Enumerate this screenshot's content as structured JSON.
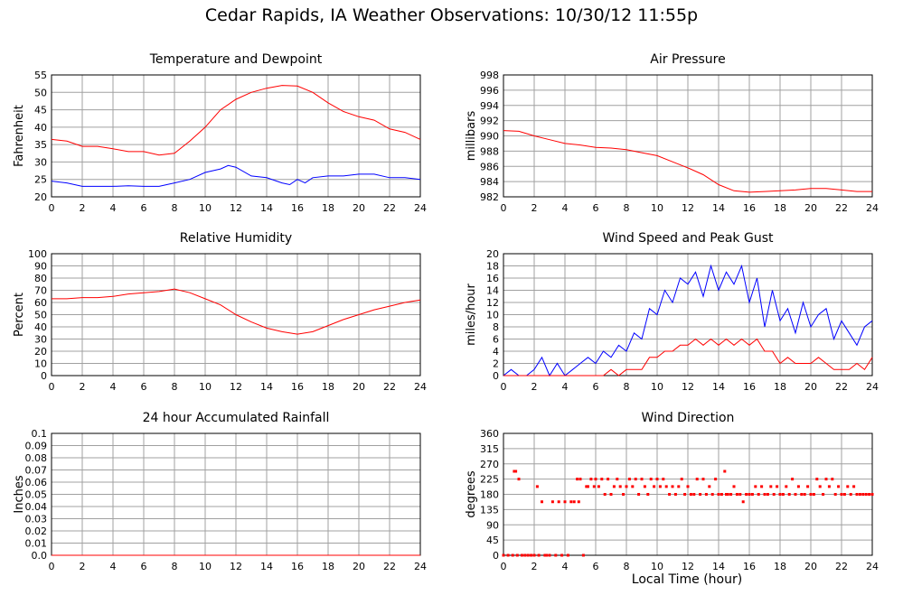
{
  "page": {
    "title": "Cedar Rapids, IA Weather Observations: 10/30/12 11:55p",
    "xlabel": "Local Time (hour)"
  },
  "colors": {
    "red": "#ff0000",
    "blue": "#0000ff",
    "grid": "#a0a0a0"
  },
  "chart_data": [
    {
      "type": "line",
      "title": "Temperature and Dewpoint",
      "ylabel": "Fahrenheit",
      "xlim": [
        0,
        24
      ],
      "ylim": [
        20,
        55
      ],
      "xticks": [
        "0",
        "2",
        "4",
        "6",
        "8",
        "10",
        "12",
        "14",
        "16",
        "18",
        "20",
        "22",
        "24"
      ],
      "yticks": [
        "20",
        "25",
        "30",
        "35",
        "40",
        "45",
        "50",
        "55"
      ],
      "grid": true,
      "series": [
        {
          "color": "#ff0000",
          "x": [
            0,
            1,
            2,
            3,
            4,
            5,
            6,
            7,
            8,
            9,
            10,
            11,
            12,
            13,
            14,
            15,
            16,
            17,
            18,
            19,
            20,
            21,
            22,
            23,
            24
          ],
          "values": [
            36.5,
            36,
            34.5,
            34.5,
            33.8,
            33,
            33,
            32,
            32.5,
            36,
            40,
            45,
            48,
            50,
            51.2,
            52,
            51.8,
            50,
            47,
            44.5,
            43,
            42,
            39.5,
            38.5,
            36.5
          ]
        },
        {
          "color": "#0000ff",
          "x": [
            0,
            1,
            2,
            3,
            4,
            5,
            6,
            7,
            8,
            9,
            10,
            11,
            11.5,
            12,
            13,
            14,
            15,
            15.5,
            16,
            16.5,
            17,
            18,
            19,
            20,
            21,
            22,
            23,
            24
          ],
          "values": [
            24.5,
            24,
            23,
            23,
            23,
            23.2,
            23,
            23,
            24,
            25,
            27,
            28,
            29,
            28.5,
            26,
            25.5,
            24,
            23.5,
            25,
            24,
            25.5,
            26,
            26,
            26.5,
            26.5,
            25.5,
            25.5,
            25
          ]
        }
      ]
    },
    {
      "type": "line",
      "title": "Air Pressure",
      "ylabel": "millibars",
      "xlim": [
        0,
        24
      ],
      "ylim": [
        982,
        998
      ],
      "xticks": [
        "0",
        "2",
        "4",
        "6",
        "8",
        "10",
        "12",
        "14",
        "16",
        "18",
        "20",
        "22",
        "24"
      ],
      "yticks": [
        "982",
        "984",
        "986",
        "988",
        "990",
        "992",
        "994",
        "996",
        "998"
      ],
      "grid": true,
      "series": [
        {
          "color": "#ff0000",
          "x": [
            0,
            1,
            2,
            3,
            4,
            5,
            6,
            7,
            8,
            9,
            10,
            11,
            12,
            13,
            14,
            15,
            16,
            17,
            18,
            19,
            20,
            21,
            22,
            23,
            24
          ],
          "values": [
            990.7,
            990.6,
            990,
            989.5,
            989,
            988.8,
            988.5,
            988.4,
            988.2,
            987.8,
            987.4,
            986.6,
            985.8,
            984.9,
            983.6,
            982.8,
            982.6,
            982.7,
            982.8,
            982.9,
            983.1,
            983.1,
            982.9,
            982.7,
            982.7
          ]
        }
      ]
    },
    {
      "type": "line",
      "title": "Relative Humidity",
      "ylabel": "Percent",
      "xlim": [
        0,
        24
      ],
      "ylim": [
        0,
        100
      ],
      "xticks": [
        "0",
        "2",
        "4",
        "6",
        "8",
        "10",
        "12",
        "14",
        "16",
        "18",
        "20",
        "22",
        "24"
      ],
      "yticks": [
        "0",
        "10",
        "20",
        "30",
        "40",
        "50",
        "60",
        "70",
        "80",
        "90",
        "100"
      ],
      "grid": true,
      "series": [
        {
          "color": "#ff0000",
          "x": [
            0,
            1,
            2,
            3,
            4,
            5,
            6,
            7,
            8,
            9,
            10,
            11,
            12,
            13,
            14,
            15,
            16,
            17,
            18,
            19,
            20,
            21,
            22,
            23,
            24
          ],
          "values": [
            63,
            63,
            64,
            64,
            65,
            67,
            68,
            69,
            71,
            68,
            63,
            58,
            50,
            44,
            39,
            36,
            34,
            36,
            41,
            46,
            50,
            54,
            57,
            60,
            62
          ]
        }
      ]
    },
    {
      "type": "line",
      "title": "Wind Speed and Peak Gust",
      "ylabel": "miles/hour",
      "xlim": [
        0,
        24
      ],
      "ylim": [
        0,
        20
      ],
      "xticks": [
        "0",
        "2",
        "4",
        "6",
        "8",
        "10",
        "12",
        "14",
        "16",
        "18",
        "20",
        "22",
        "24"
      ],
      "yticks": [
        "0",
        "2",
        "4",
        "6",
        "8",
        "10",
        "12",
        "14",
        "16",
        "18",
        "20"
      ],
      "grid": true,
      "series": [
        {
          "color": "#0000ff",
          "x": [
            0,
            0.5,
            1,
            1.5,
            2,
            2.5,
            3,
            3.5,
            4,
            4.5,
            5,
            5.5,
            6,
            6.5,
            7,
            7.5,
            8,
            8.5,
            9,
            9.5,
            10,
            10.5,
            11,
            11.5,
            12,
            12.5,
            13,
            13.5,
            14,
            14.5,
            15,
            15.5,
            16,
            16.5,
            17,
            17.5,
            18,
            18.5,
            19,
            19.5,
            20,
            20.5,
            21,
            21.5,
            22,
            22.5,
            23,
            23.5,
            24
          ],
          "values": [
            0,
            1,
            0,
            0,
            1,
            3,
            0,
            2,
            0,
            1,
            2,
            3,
            2,
            4,
            3,
            5,
            4,
            7,
            6,
            11,
            10,
            14,
            12,
            16,
            15,
            17,
            13,
            18,
            14,
            17,
            15,
            18,
            12,
            16,
            8,
            14,
            9,
            11,
            7,
            12,
            8,
            10,
            11,
            6,
            9,
            7,
            5,
            8,
            9
          ]
        },
        {
          "color": "#ff0000",
          "x": [
            0,
            6.5,
            7,
            7.5,
            8,
            8.5,
            9,
            9.5,
            10,
            10.5,
            11,
            11.5,
            12,
            12.5,
            13,
            13.5,
            14,
            14.5,
            15,
            15.5,
            16,
            16.5,
            17,
            17.5,
            18,
            18.5,
            19,
            19.5,
            20,
            20.5,
            21,
            21.5,
            22,
            22.5,
            23,
            23.5,
            24
          ],
          "values": [
            0,
            0,
            1,
            0,
            1,
            1,
            1,
            3,
            3,
            4,
            4,
            5,
            5,
            6,
            5,
            6,
            5,
            6,
            5,
            6,
            5,
            6,
            4,
            4,
            2,
            3,
            2,
            2,
            2,
            3,
            2,
            1,
            1,
            1,
            2,
            1,
            3
          ]
        }
      ]
    },
    {
      "type": "line",
      "title": "24 hour Accumulated Rainfall",
      "ylabel": "Inches",
      "xlim": [
        0,
        24
      ],
      "ylim": [
        0,
        0.1
      ],
      "xticks": [
        "0",
        "2",
        "4",
        "6",
        "8",
        "10",
        "12",
        "14",
        "16",
        "18",
        "20",
        "22",
        "24"
      ],
      "yticks": [
        "0.0",
        "0.01",
        "0.02",
        "0.03",
        "0.04",
        "0.05",
        "0.06",
        "0.07",
        "0.08",
        "0.09",
        "0.1"
      ],
      "grid": true,
      "series": [
        {
          "color": "#ff0000",
          "x": [
            0,
            24
          ],
          "values": [
            0,
            0
          ]
        }
      ]
    },
    {
      "type": "scatter",
      "title": "Wind Direction",
      "ylabel": "degrees",
      "xlabel": "Local Time (hour)",
      "xlim": [
        0,
        24
      ],
      "ylim": [
        0,
        360
      ],
      "xticks": [
        "0",
        "2",
        "4",
        "6",
        "8",
        "10",
        "12",
        "14",
        "16",
        "18",
        "20",
        "22",
        "24"
      ],
      "yticks": [
        "0",
        "45",
        "90",
        "135",
        "180",
        "225",
        "270",
        "315",
        "360"
      ],
      "grid": true,
      "series": [
        {
          "color": "#ff0000",
          "x": [
            0,
            0.3,
            0.6,
            0.7,
            0.8,
            0.9,
            1,
            1.2,
            1.4,
            1.6,
            1.8,
            2,
            2.2,
            2.3,
            2.5,
            2.7,
            2.8,
            3,
            3.2,
            3.4,
            3.6,
            3.8,
            4,
            4.2,
            4.4,
            4.6,
            4.8,
            4.9,
            5,
            5.2,
            5.4,
            5.5,
            5.7,
            5.9,
            6,
            6.2,
            6.4,
            6.6,
            6.8,
            7,
            7.2,
            7.4,
            7.6,
            7.8,
            8,
            8.2,
            8.4,
            8.6,
            8.8,
            9,
            9.2,
            9.4,
            9.6,
            9.8,
            10,
            10.2,
            10.4,
            10.6,
            10.8,
            11,
            11.2,
            11.4,
            11.6,
            11.8,
            12,
            12.2,
            12.4,
            12.6,
            12.8,
            13,
            13.2,
            13.4,
            13.6,
            13.8,
            14,
            14.2,
            14.4,
            14.5,
            14.6,
            14.8,
            15,
            15.2,
            15.4,
            15.6,
            15.8,
            16,
            16.2,
            16.4,
            16.6,
            16.8,
            17,
            17.2,
            17.4,
            17.6,
            17.8,
            18,
            18.2,
            18.4,
            18.6,
            18.8,
            19,
            19.2,
            19.4,
            19.6,
            19.8,
            20,
            20.2,
            20.4,
            20.6,
            20.8,
            21,
            21.2,
            21.4,
            21.6,
            21.8,
            22,
            22.2,
            22.4,
            22.6,
            22.8,
            23,
            23.2,
            23.4,
            23.6,
            23.8,
            24
          ],
          "values": [
            0,
            0,
            0,
            248,
            248,
            0,
            225,
            0,
            0,
            0,
            0,
            0,
            203,
            0,
            158,
            0,
            0,
            0,
            158,
            0,
            158,
            0,
            158,
            0,
            158,
            158,
            225,
            158,
            225,
            0,
            203,
            203,
            225,
            203,
            225,
            203,
            225,
            180,
            225,
            180,
            203,
            225,
            203,
            180,
            203,
            225,
            203,
            225,
            180,
            225,
            203,
            180,
            225,
            203,
            225,
            203,
            225,
            203,
            180,
            203,
            180,
            203,
            225,
            180,
            203,
            180,
            180,
            225,
            180,
            225,
            180,
            203,
            180,
            225,
            180,
            180,
            248,
            180,
            180,
            180,
            203,
            180,
            180,
            158,
            180,
            180,
            180,
            203,
            180,
            203,
            180,
            180,
            203,
            180,
            203,
            180,
            180,
            203,
            180,
            225,
            180,
            203,
            180,
            180,
            203,
            180,
            180,
            225,
            203,
            180,
            225,
            203,
            225,
            180,
            203,
            180,
            180,
            203,
            180,
            203,
            180,
            180,
            180,
            180,
            180,
            180
          ]
        }
      ]
    }
  ]
}
